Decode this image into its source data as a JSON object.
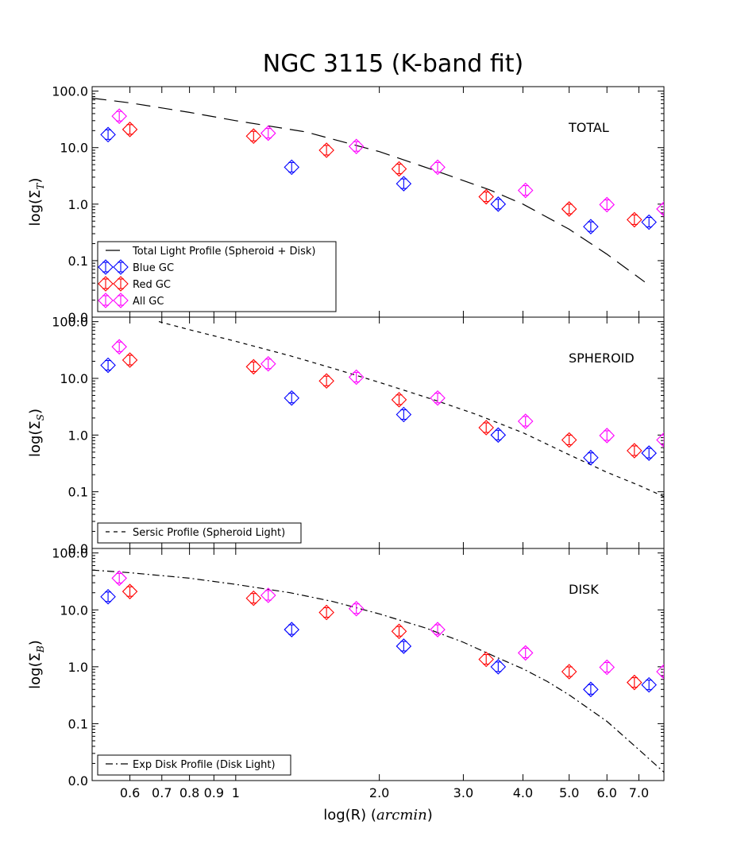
{
  "chart_data": {
    "type": "scatter",
    "title": "NGC 3115  (K-band fit)",
    "xlabel_prefix": "log(R) (",
    "xlabel_math": "arcmin",
    "xlabel_suffix": ")",
    "x_scale": "log",
    "xlim": [
      0.5,
      7.9
    ],
    "x_ticks": [
      0.6,
      0.7,
      0.8,
      0.9,
      1,
      2,
      3,
      4,
      5,
      6,
      7
    ],
    "x_tick_labels": [
      "0.6",
      "0.7",
      "0.8",
      "0.9",
      "1",
      "2.0",
      "3.0",
      "4.0",
      "5.0",
      "6.0",
      "7.0"
    ],
    "y_scale": "log",
    "ylim": [
      0.01,
      120
    ],
    "y_ticks": [
      0.01,
      0.1,
      1,
      10,
      100
    ],
    "y_tick_labels": [
      "0.0",
      "0.1",
      "1.0",
      "10.0",
      "100.0"
    ],
    "gc_series": [
      {
        "name": "Blue GC",
        "color": "#0000ff",
        "points": [
          {
            "x": 0.54,
            "y": 17
          },
          {
            "x": 1.31,
            "y": 4.5
          },
          {
            "x": 2.25,
            "y": 2.3
          },
          {
            "x": 3.55,
            "y": 1.0
          },
          {
            "x": 5.55,
            "y": 0.4
          },
          {
            "x": 7.35,
            "y": 0.48
          }
        ]
      },
      {
        "name": "Red GC",
        "color": "#ff0000",
        "points": [
          {
            "x": 0.6,
            "y": 21
          },
          {
            "x": 1.09,
            "y": 16
          },
          {
            "x": 1.55,
            "y": 9.0
          },
          {
            "x": 2.2,
            "y": 4.2
          },
          {
            "x": 3.35,
            "y": 1.35
          },
          {
            "x": 5.0,
            "y": 0.82
          },
          {
            "x": 6.85,
            "y": 0.53
          }
        ]
      },
      {
        "name": "All GC",
        "color": "#ff00ff",
        "points": [
          {
            "x": 0.57,
            "y": 36
          },
          {
            "x": 1.17,
            "y": 18
          },
          {
            "x": 1.79,
            "y": 10.5
          },
          {
            "x": 2.65,
            "y": 4.5
          },
          {
            "x": 4.05,
            "y": 1.75
          },
          {
            "x": 6.0,
            "y": 0.98
          },
          {
            "x": 7.9,
            "y": 0.82
          }
        ]
      }
    ],
    "panels": [
      {
        "label": "TOTAL",
        "ylabel_sub": "T",
        "curve": {
          "name": "Total Light Profile (Spheroid + Disk)",
          "style": "dashed-long",
          "x": [
            0.5,
            0.6,
            0.8,
            1.0,
            1.4,
            2.0,
            2.6,
            3.4,
            4.0,
            5.0,
            6.0,
            7.2
          ],
          "y": [
            75,
            62,
            42,
            30,
            19,
            8.5,
            4.0,
            1.8,
            1.0,
            0.36,
            0.13,
            0.042
          ]
        },
        "legend_entries": [
          "Total Light Profile (Spheroid + Disk)",
          "Blue GC",
          "Red GC",
          "All GC"
        ]
      },
      {
        "label": "SPHEROID",
        "ylabel_sub": "S",
        "curve": {
          "name": "Sersic Profile (Spheroid Light)",
          "style": "dashed-short",
          "x": [
            0.69,
            0.8,
            1.0,
            1.3,
            1.6,
            2.0,
            2.6,
            3.2,
            4.0,
            5.0,
            6.0,
            7.0,
            7.9
          ],
          "y": [
            100,
            72,
            45,
            25,
            15,
            8.5,
            4.2,
            2.3,
            1.1,
            0.45,
            0.22,
            0.13,
            0.082
          ]
        },
        "legend_entries": [
          "Sersic Profile (Spheroid Light)"
        ]
      },
      {
        "label": "DISK",
        "ylabel_sub": "B",
        "curve": {
          "name": "Exp Disk Profile (Disk Light)",
          "style": "dash-dot",
          "x": [
            0.5,
            0.6,
            0.8,
            1.0,
            1.3,
            1.6,
            2.0,
            2.5,
            3.0,
            3.5,
            4.0,
            4.5,
            5.0,
            6.0,
            7.0,
            7.9
          ],
          "y": [
            50,
            45,
            36,
            28,
            20,
            14,
            8.5,
            4.8,
            2.7,
            1.5,
            0.92,
            0.55,
            0.32,
            0.11,
            0.035,
            0.014
          ]
        },
        "legend_entries": [
          "Exp Disk Profile (Disk Light)"
        ]
      }
    ]
  }
}
